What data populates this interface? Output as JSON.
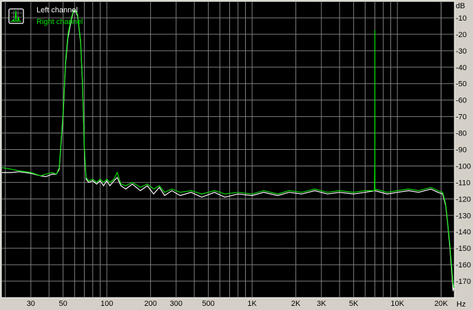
{
  "chart_data": {
    "type": "line",
    "title": "",
    "xlabel": "Hz",
    "ylabel": "dB",
    "x_scale": "log",
    "xlim": [
      18.8,
      24700
    ],
    "ylim": [
      -180,
      0
    ],
    "grid": true,
    "legend_position": "top-left",
    "x_ticks": [
      {
        "value": 30,
        "label": "30"
      },
      {
        "value": 50,
        "label": "50"
      },
      {
        "value": 100,
        "label": "100"
      },
      {
        "value": 200,
        "label": "200"
      },
      {
        "value": 300,
        "label": "300"
      },
      {
        "value": 500,
        "label": "500"
      },
      {
        "value": 1000,
        "label": "1K"
      },
      {
        "value": 2000,
        "label": "2K"
      },
      {
        "value": 3000,
        "label": "3K"
      },
      {
        "value": 5000,
        "label": "5K"
      },
      {
        "value": 10000,
        "label": "10K"
      },
      {
        "value": 20000,
        "label": "20K"
      }
    ],
    "y_ticks": [
      -10,
      -20,
      -30,
      -40,
      -50,
      -60,
      -70,
      -80,
      -90,
      -100,
      -110,
      -120,
      -130,
      -140,
      -150,
      -160,
      -170
    ],
    "colors": {
      "background": "#000000",
      "grid": "#808080",
      "frame": "#d4d0c8",
      "text": "#000000"
    },
    "series": [
      {
        "name": "Left channel",
        "color": "#ffffff",
        "x": [
          19,
          22,
          25,
          30,
          35,
          38,
          42,
          45,
          47,
          50,
          52,
          54,
          57,
          59,
          61,
          63,
          66,
          68,
          70,
          72,
          75,
          80,
          85,
          90,
          95,
          100,
          105,
          112,
          118,
          125,
          135,
          150,
          170,
          190,
          210,
          230,
          250,
          280,
          320,
          380,
          450,
          550,
          650,
          800,
          1000,
          1200,
          1500,
          1800,
          2200,
          2700,
          3300,
          4000,
          5000,
          6000,
          7000,
          8500,
          10000,
          12000,
          14000,
          17000,
          19000,
          20500,
          21500,
          22200,
          23000,
          23700,
          24200,
          24700
        ],
        "y": [
          -104,
          -104,
          -103.5,
          -104.5,
          -106,
          -106.5,
          -105,
          -105,
          -102,
          -70,
          -38,
          -22,
          -11,
          -6,
          -6,
          -9,
          -25,
          -50,
          -90,
          -108,
          -110,
          -109,
          -111,
          -109,
          -112,
          -109,
          -112,
          -109,
          -107,
          -112,
          -114,
          -111,
          -115,
          -112,
          -117,
          -113,
          -118,
          -115,
          -118,
          -116,
          -119,
          -116,
          -119,
          -117,
          -118,
          -116,
          -118,
          -116,
          -117,
          -115,
          -117,
          -116,
          -117,
          -116,
          -115,
          -117,
          -116,
          -115,
          -116,
          -114,
          -116,
          -117,
          -124,
          -135,
          -150,
          -165,
          -176,
          -172
        ]
      },
      {
        "name": "Right channel",
        "color": "#00e000",
        "x": [
          19,
          22,
          25,
          30,
          35,
          38,
          42,
          45,
          47,
          50,
          52,
          54,
          57,
          59,
          61,
          63,
          66,
          68,
          70,
          72,
          75,
          80,
          85,
          90,
          95,
          100,
          105,
          112,
          118,
          125,
          135,
          150,
          170,
          190,
          210,
          230,
          250,
          280,
          320,
          380,
          450,
          550,
          650,
          800,
          1000,
          1200,
          1500,
          1800,
          2200,
          2700,
          3300,
          4000,
          5000,
          6000,
          6950,
          6990,
          7000,
          7010,
          8500,
          10000,
          12000,
          14000,
          17000,
          19000,
          20500,
          21500,
          22200,
          23000,
          23700,
          24200,
          24700
        ],
        "y": [
          -101,
          -102,
          -103,
          -104,
          -106,
          -105,
          -104,
          -105,
          -101,
          -68,
          -36,
          -20,
          -10,
          -5.5,
          -5.5,
          -8,
          -24,
          -48,
          -88,
          -107,
          -109,
          -108,
          -110,
          -108,
          -110,
          -108,
          -110,
          -108,
          -104,
          -111,
          -112,
          -110,
          -113,
          -111,
          -114,
          -112,
          -116,
          -114,
          -116,
          -115,
          -117,
          -115,
          -117,
          -116,
          -117,
          -115,
          -117,
          -115,
          -116,
          -114,
          -116,
          -115,
          -116,
          -115,
          -115,
          -97,
          -17.5,
          -114,
          -116,
          -115,
          -114,
          -115,
          -113,
          -115,
          -116,
          -123,
          -134,
          -148,
          -162,
          -172,
          -174
        ]
      }
    ]
  }
}
